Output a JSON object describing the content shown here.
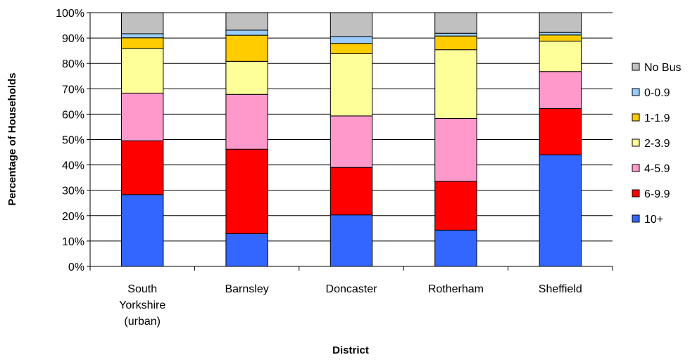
{
  "chart_data": {
    "type": "bar",
    "stacked": true,
    "percent_stacked": true,
    "xlabel": "District",
    "ylabel": "Percentage of Households",
    "ylim": [
      0,
      100
    ],
    "yticks": [
      "0%",
      "10%",
      "20%",
      "30%",
      "40%",
      "50%",
      "60%",
      "70%",
      "80%",
      "90%",
      "100%"
    ],
    "grid": true,
    "legend_position": "right",
    "categories": [
      [
        "South",
        "Yorkshire",
        "(urban)"
      ],
      [
        "Barnsley"
      ],
      [
        "Doncaster"
      ],
      [
        "Rotherham"
      ],
      [
        "Sheffield"
      ]
    ],
    "series": [
      {
        "name": "10+",
        "color": "#3366ff",
        "values": [
          28.3,
          12.9,
          20.3,
          14.3,
          44.0
        ]
      },
      {
        "name": "6-9.9",
        "color": "#ff0000",
        "values": [
          21.2,
          33.3,
          18.7,
          19.2,
          18.2
        ]
      },
      {
        "name": "4-5.9",
        "color": "#ff99cc",
        "values": [
          18.8,
          21.6,
          20.3,
          24.8,
          14.6
        ]
      },
      {
        "name": "2-3.9",
        "color": "#ffff99",
        "values": [
          17.6,
          13.0,
          24.5,
          27.1,
          12.0
        ]
      },
      {
        "name": "1-1.9",
        "color": "#ffcc00",
        "values": [
          4.2,
          10.3,
          4.1,
          5.4,
          2.4
        ]
      },
      {
        "name": "0-0.9",
        "color": "#99ccff",
        "values": [
          1.6,
          2.0,
          2.7,
          1.1,
          1.0
        ]
      },
      {
        "name": "No Bus",
        "color": "#c0c0c0",
        "values": [
          8.3,
          6.9,
          9.4,
          8.1,
          7.8
        ]
      }
    ],
    "legend_order": [
      "No Bus",
      "0-0.9",
      "1-1.9",
      "2-3.9",
      "4-5.9",
      "6-9.9",
      "10+"
    ]
  }
}
